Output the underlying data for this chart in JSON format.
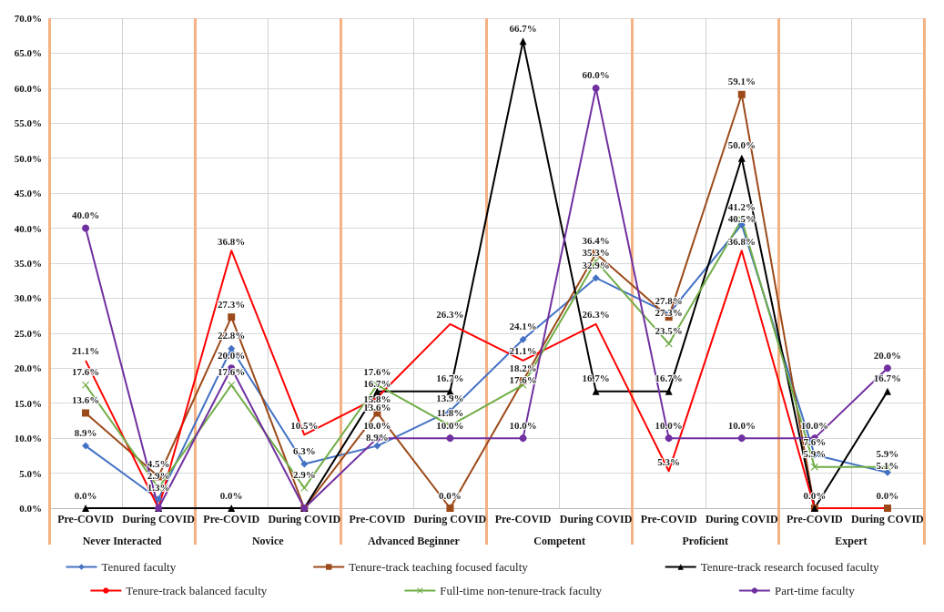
{
  "chart_data": {
    "type": "line",
    "categories": [
      "Pre-COVID",
      "During COVID",
      "Pre-COVID",
      "During COVID",
      "Pre-COVID",
      "During COVID",
      "Pre-COVID",
      "During COVID",
      "Pre-COVID",
      "During COVID",
      "Pre-COVID",
      "During COVID"
    ],
    "annotations": [
      "Never Interacted",
      "Novice",
      "Advanced Beginner",
      "Competent",
      "Proficient",
      "Expert"
    ],
    "ylim": [
      0,
      70
    ],
    "yticks": [
      {
        "value": 0,
        "label": "0.0%"
      },
      {
        "value": 5,
        "label": "5.0%"
      },
      {
        "value": 10,
        "label": "10.0%"
      },
      {
        "value": 15,
        "label": "15.0%"
      },
      {
        "value": 20,
        "label": "20.0%"
      },
      {
        "value": 25,
        "label": "25.0%"
      },
      {
        "value": 30,
        "label": "30.0%"
      },
      {
        "value": 35,
        "label": "35.0%"
      },
      {
        "value": 40,
        "label": "40.0%"
      },
      {
        "value": 45,
        "label": "45.0%"
      },
      {
        "value": 50,
        "label": "50.0%"
      },
      {
        "value": 55,
        "label": "55.0%"
      },
      {
        "value": 60,
        "label": "60.0%"
      },
      {
        "value": 65,
        "label": "65.0%"
      },
      {
        "value": 70,
        "label": "70.0%"
      }
    ],
    "grid": true,
    "legend": "bottom",
    "series": [
      {
        "name": "Tenured faculty",
        "color": "#4472c4",
        "marker": "diamond",
        "values": [
          8.9,
          1.3,
          22.8,
          6.3,
          8.9,
          13.9,
          24.1,
          32.9,
          27.8,
          40.5,
          7.6,
          5.1
        ],
        "value_labels": [
          "8.9%",
          "1.3%",
          "22.8%",
          "6.3%",
          "8.9%",
          "13.9%",
          "24.1%",
          "32.9%",
          "27.8%",
          "40.5%",
          "7.6%",
          "5.1%"
        ]
      },
      {
        "name": "Tenure-track teaching focused faculty",
        "color": "#9c4a1a",
        "marker": "square",
        "values": [
          13.6,
          4.5,
          27.3,
          0,
          13.6,
          0,
          18.2,
          36.4,
          27.3,
          59.1,
          0,
          0
        ],
        "value_labels": [
          "13.6%",
          "4.5%",
          "27.3%",
          null,
          "13.6%",
          "0.0%",
          "18.2%",
          "36.4%",
          "27.3%",
          "59.1%",
          null,
          "0.0%"
        ]
      },
      {
        "name": "Tenure-track research focused faculty",
        "color": "#000000",
        "marker": "triangle",
        "values": [
          0,
          0,
          0,
          0,
          16.7,
          16.7,
          66.7,
          16.7,
          16.7,
          50.0,
          0,
          16.7
        ],
        "value_labels": [
          "0.0%",
          null,
          "0.0%",
          null,
          "16.7%",
          "16.7%",
          "66.7%",
          "16.7%",
          "16.7%",
          "50.0%",
          "0.0%",
          "16.7%"
        ]
      },
      {
        "name": "Tenure-track balanced faculty",
        "color": "#ff0000",
        "marker": "none",
        "values": [
          21.1,
          0,
          36.8,
          10.5,
          15.8,
          26.3,
          21.1,
          26.3,
          5.3,
          36.8,
          0,
          0
        ],
        "value_labels": [
          "21.1%",
          null,
          "36.8%",
          "10.5%",
          "15.8%",
          "26.3%",
          "21.1%",
          "26.3%",
          "5.3%",
          "36.8%",
          null,
          null
        ]
      },
      {
        "name": "Full-time non-tenure-track faculty",
        "color": "#70ad47",
        "marker": "cross",
        "values": [
          17.6,
          2.9,
          17.6,
          2.9,
          17.6,
          11.8,
          17.6,
          35.3,
          23.5,
          41.2,
          5.9,
          5.9
        ],
        "value_labels": [
          "17.6%",
          "2.9%",
          "17.6%",
          "2.9%",
          "17.6%",
          "11.8%",
          "17.6%",
          "35.3%",
          "23.5%",
          "41.2%",
          "5.9%",
          "5.9%"
        ]
      },
      {
        "name": "Part-time faculty",
        "color": "#7030a0",
        "marker": "circle",
        "values": [
          40.0,
          0,
          20.0,
          0,
          10.0,
          10.0,
          10.0,
          60.0,
          10.0,
          10.0,
          10.0,
          20.0
        ],
        "value_labels": [
          "40.0%",
          null,
          "20.0%",
          null,
          "10.0%",
          "10.0%",
          "10.0%",
          "60.0%",
          "10.0%",
          "10.0%",
          "10.0%",
          "20.0%"
        ]
      }
    ]
  }
}
